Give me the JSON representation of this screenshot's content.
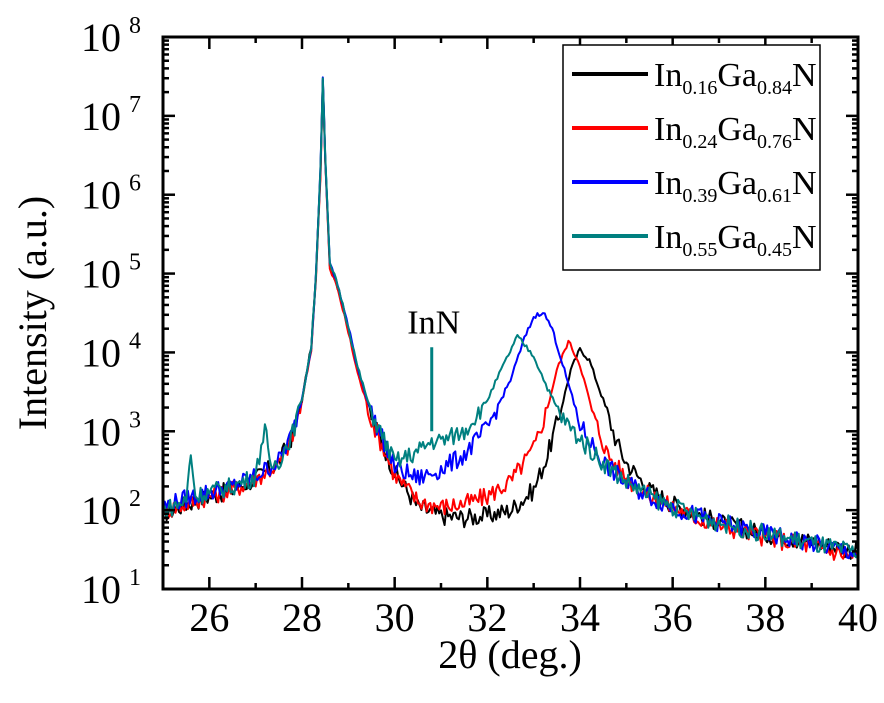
{
  "chart_data": {
    "type": "line",
    "title": "",
    "xlabel": "2θ (deg.)",
    "ylabel": "Intensity (a.u.)",
    "xlim": [
      25,
      40
    ],
    "ylim": [
      10,
      100000000
    ],
    "yscale": "log",
    "x_ticks": [
      26,
      28,
      30,
      32,
      34,
      36,
      38,
      40
    ],
    "x_tick_labels": [
      "26",
      "28",
      "30",
      "32",
      "34",
      "36",
      "38",
      "40"
    ],
    "y_ticks": [
      10,
      100,
      1000,
      10000,
      100000,
      1000000,
      10000000,
      100000000
    ],
    "y_tick_bases": [
      "10",
      "10",
      "10",
      "10",
      "10",
      "10",
      "10",
      "10"
    ],
    "y_tick_exponents": [
      "1",
      "2",
      "3",
      "4",
      "5",
      "6",
      "7",
      "8"
    ],
    "grid": false,
    "legend_position": "top-right",
    "series": [
      {
        "name": "In0.16Ga0.84N",
        "label_parts": [
          "In",
          "0.16",
          "Ga",
          "0.84",
          "N"
        ],
        "color": "#000000",
        "x": [
          25.0,
          25.5,
          26.0,
          26.5,
          27.0,
          27.5,
          27.8,
          28.0,
          28.2,
          28.3,
          28.4,
          28.45,
          28.5,
          28.6,
          28.7,
          28.8,
          29.0,
          29.2,
          29.5,
          30.0,
          30.5,
          31.0,
          31.5,
          32.0,
          32.5,
          33.0,
          33.3,
          33.6,
          33.8,
          34.0,
          34.2,
          34.5,
          34.8,
          35.0,
          35.5,
          36.0,
          36.5,
          37.0,
          38.0,
          39.0,
          40.0
        ],
        "y": [
          90,
          120,
          150,
          180,
          250,
          400,
          900,
          2500,
          12000,
          90000,
          2000000,
          30000000,
          3000000,
          120000,
          90000,
          60000,
          20000,
          6000,
          1500,
          300,
          110,
          85,
          80,
          85,
          100,
          180,
          500,
          2000,
          6000,
          11000,
          8000,
          2500,
          700,
          400,
          180,
          120,
          90,
          70,
          50,
          40,
          30
        ]
      },
      {
        "name": "In0.24Ga0.76N",
        "label_parts": [
          "In",
          "0.24",
          "Ga",
          "0.76",
          "N"
        ],
        "color": "#ff0000",
        "x": [
          25.0,
          25.5,
          26.0,
          26.5,
          27.0,
          27.5,
          27.8,
          28.0,
          28.2,
          28.3,
          28.4,
          28.45,
          28.5,
          28.6,
          28.7,
          28.8,
          29.0,
          29.2,
          29.5,
          30.0,
          30.5,
          31.0,
          31.5,
          32.0,
          32.5,
          33.0,
          33.3,
          33.5,
          33.75,
          34.0,
          34.3,
          34.6,
          35.0,
          35.5,
          36.0,
          36.5,
          37.0,
          38.0,
          39.0,
          40.0
        ],
        "y": [
          95,
          120,
          150,
          180,
          250,
          380,
          850,
          2400,
          11000,
          85000,
          1800000,
          28000000,
          2800000,
          110000,
          85000,
          55000,
          18000,
          5500,
          1400,
          280,
          130,
          110,
          120,
          150,
          230,
          600,
          2000,
          6000,
          14000,
          7000,
          1500,
          500,
          250,
          150,
          110,
          80,
          65,
          45,
          35,
          25
        ]
      },
      {
        "name": "In0.39Ga0.61N",
        "label_parts": [
          "In",
          "0.39",
          "Ga",
          "0.61",
          "N"
        ],
        "color": "#0000ff",
        "x": [
          25.0,
          25.5,
          26.0,
          26.5,
          27.0,
          27.5,
          27.8,
          28.0,
          28.2,
          28.3,
          28.4,
          28.45,
          28.5,
          28.6,
          28.7,
          28.8,
          29.0,
          29.2,
          29.5,
          30.0,
          30.5,
          31.0,
          31.5,
          32.0,
          32.5,
          32.8,
          33.0,
          33.2,
          33.4,
          33.7,
          34.0,
          34.5,
          35.0,
          35.5,
          36.0,
          36.5,
          37.0,
          38.0,
          39.0,
          40.0
        ],
        "y": [
          110,
          140,
          170,
          200,
          270,
          420,
          950,
          2600,
          12000,
          95000,
          2200000,
          32000000,
          3200000,
          130000,
          95000,
          62000,
          21000,
          6500,
          1700,
          350,
          250,
          330,
          500,
          1100,
          4500,
          15000,
          28000,
          33000,
          20000,
          5000,
          1200,
          400,
          220,
          150,
          110,
          85,
          70,
          50,
          38,
          28
        ]
      },
      {
        "name": "In0.55Ga0.45N",
        "label_parts": [
          "In",
          "0.55",
          "Ga",
          "0.45",
          "N"
        ],
        "color": "#008080",
        "x": [
          25.0,
          25.5,
          25.6,
          25.7,
          26.0,
          26.5,
          27.0,
          27.2,
          27.3,
          27.5,
          27.8,
          28.0,
          28.2,
          28.3,
          28.4,
          28.45,
          28.5,
          28.6,
          28.7,
          28.8,
          29.0,
          29.2,
          29.5,
          30.0,
          30.5,
          30.8,
          31.0,
          31.5,
          32.0,
          32.3,
          32.65,
          33.0,
          33.3,
          33.6,
          34.0,
          34.5,
          35.0,
          35.5,
          36.0,
          36.5,
          37.0,
          38.0,
          39.0,
          40.0
        ],
        "y": [
          100,
          130,
          550,
          150,
          170,
          200,
          270,
          1200,
          350,
          420,
          950,
          2600,
          12000,
          95000,
          2200000,
          31000000,
          3100000,
          130000,
          95000,
          62000,
          21000,
          6500,
          1700,
          400,
          550,
          750,
          750,
          1000,
          2500,
          6000,
          16000,
          9000,
          3500,
          1500,
          800,
          400,
          230,
          150,
          110,
          85,
          70,
          50,
          38,
          28
        ]
      }
    ],
    "annotations": [
      {
        "text": "InN",
        "x": 30.8,
        "y": 1000,
        "color": "#008080"
      }
    ]
  }
}
